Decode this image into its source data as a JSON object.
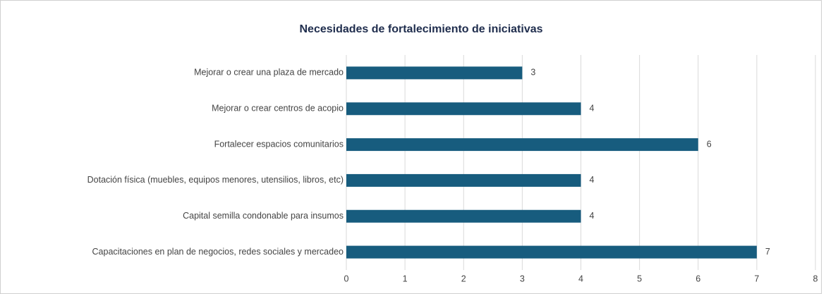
{
  "chart_data": {
    "type": "bar",
    "orientation": "horizontal",
    "title": "Necesidades de fortalecimiento de iniciativas",
    "categories": [
      "Mejorar o crear una plaza de mercado",
      "Mejorar o crear centros de acopio",
      "Fortalecer espacios comunitarios",
      "Dotación física (muebles, equipos menores, utensilios, libros, etc)",
      "Capital semilla condonable para insumos",
      "Capacitaciones en plan de negocios, redes sociales y mercadeo"
    ],
    "values": [
      3,
      4,
      6,
      4,
      4,
      7
    ],
    "color": "#175c7e",
    "xlim": [
      0,
      8
    ],
    "xticks": [
      0,
      1,
      2,
      3,
      4,
      5,
      6,
      7,
      8
    ],
    "grid": true
  }
}
